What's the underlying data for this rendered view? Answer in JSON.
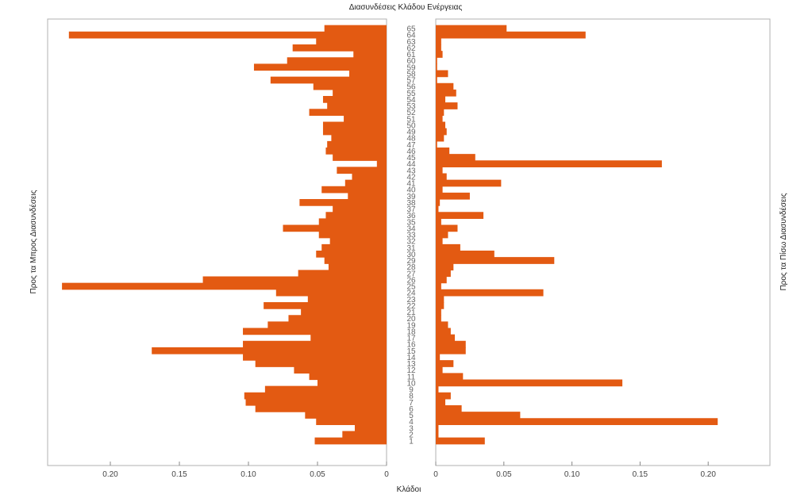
{
  "chart_data": {
    "type": "bar",
    "orientation": "horizontal",
    "layout": "butterfly",
    "title": "Διασυνδέσεις Κλάδου Ενέργειας",
    "xlabel": "Κλάδοι",
    "ylabel_left": "Προς τα Μπρος Διασυνδέσεις",
    "ylabel_right": "Προς τα Πίσω Διασυνδέσεις",
    "bar_color": "#E35A12",
    "categories": [
      "1",
      "2",
      "3",
      "4",
      "5",
      "6",
      "7",
      "8",
      "9",
      "10",
      "11",
      "12",
      "13",
      "14",
      "15",
      "16",
      "17",
      "18",
      "19",
      "20",
      "21",
      "22",
      "23",
      "24",
      "25",
      "26",
      "27",
      "28",
      "29",
      "30",
      "31",
      "32",
      "33",
      "34",
      "35",
      "36",
      "37",
      "38",
      "39",
      "40",
      "41",
      "42",
      "43",
      "44",
      "45",
      "46",
      "47",
      "48",
      "49",
      "50",
      "51",
      "52",
      "53",
      "54",
      "55",
      "56",
      "57",
      "58",
      "59",
      "60",
      "61",
      "62",
      "63",
      "64",
      "65"
    ],
    "left_xlim": [
      0,
      0.245
    ],
    "right_xlim": [
      0,
      0.24
    ],
    "left_ticks": [
      "0.20",
      "0.15",
      "0.10",
      "0.05",
      "0"
    ],
    "left_tick_values": [
      0.2,
      0.15,
      0.1,
      0.05,
      0
    ],
    "right_ticks": [
      "0",
      "0.05",
      "0.10",
      "0.15",
      "0.20"
    ],
    "right_tick_values": [
      0,
      0.05,
      0.1,
      0.15,
      0.2
    ],
    "series": [
      {
        "side": "left",
        "values": [
          0.052,
          0.032,
          0.023,
          0.051,
          0.059,
          0.095,
          0.102,
          0.103,
          0.088,
          0.05,
          0.056,
          0.067,
          0.095,
          0.104,
          0.17,
          0.104,
          0.055,
          0.104,
          0.086,
          0.071,
          0.062,
          0.089,
          0.057,
          0.08,
          0.235,
          0.133,
          0.064,
          0.042,
          0.045,
          0.051,
          0.047,
          0.041,
          0.049,
          0.075,
          0.049,
          0.044,
          0.039,
          0.063,
          0.028,
          0.047,
          0.03,
          0.025,
          0.036,
          0.007,
          0.039,
          0.044,
          0.043,
          0.04,
          0.046,
          0.046,
          0.031,
          0.056,
          0.043,
          0.046,
          0.039,
          0.053,
          0.084,
          0.027,
          0.096,
          0.072,
          0.024,
          0.068,
          0.051,
          0.23,
          0.045
        ]
      },
      {
        "side": "right",
        "values": [
          0.036,
          0.002,
          0.002,
          0.207,
          0.062,
          0.019,
          0.007,
          0.011,
          0.002,
          0.137,
          0.02,
          0.005,
          0.013,
          0.003,
          0.022,
          0.022,
          0.014,
          0.011,
          0.009,
          0.004,
          0.004,
          0.006,
          0.006,
          0.079,
          0.004,
          0.008,
          0.011,
          0.013,
          0.087,
          0.043,
          0.018,
          0.005,
          0.009,
          0.016,
          0.004,
          0.035,
          0.002,
          0.003,
          0.025,
          0.005,
          0.048,
          0.008,
          0.005,
          0.166,
          0.029,
          0.01,
          0.001,
          0.006,
          0.008,
          0.007,
          0.005,
          0.006,
          0.016,
          0.007,
          0.015,
          0.013,
          0.001,
          0.009,
          0.001,
          0.001,
          0.005,
          0.004,
          0.004,
          0.11,
          0.052
        ]
      }
    ]
  }
}
